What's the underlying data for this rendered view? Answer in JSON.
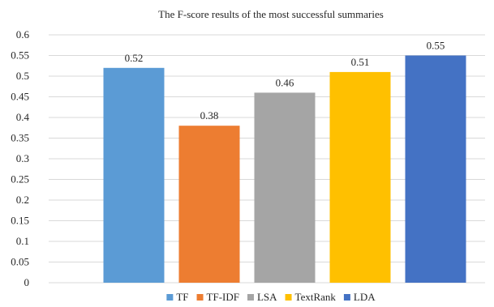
{
  "chart_data": {
    "type": "bar",
    "title": "The F-score results of the most successful summaries",
    "categories": [
      "TF",
      "TF-IDF",
      "LSA",
      "TextRank",
      "LDA"
    ],
    "values": [
      0.52,
      0.38,
      0.46,
      0.51,
      0.55
    ],
    "data_labels": [
      "0.52",
      "0.38",
      "0.46",
      "0.51",
      "0.55"
    ],
    "colors": [
      "#5b9bd5",
      "#ed7d31",
      "#a5a5a5",
      "#ffc000",
      "#4472c4"
    ],
    "ylim": [
      0,
      0.6
    ],
    "yticks": [
      0,
      0.05,
      0.1,
      0.15,
      0.2,
      0.25,
      0.3,
      0.35,
      0.4,
      0.45,
      0.5,
      0.55,
      0.6
    ],
    "ytick_labels": [
      "0",
      "0.05",
      "0.1",
      "0.15",
      "0.2",
      "0.25",
      "0.3",
      "0.35",
      "0.4",
      "0.45",
      "0.5",
      "0.55",
      "0.6"
    ],
    "xlabel": "",
    "ylabel": "",
    "grid": true,
    "legend_position": "bottom",
    "legend": [
      "TF",
      "TF-IDF",
      "LSA",
      "TextRank",
      "LDA"
    ]
  }
}
